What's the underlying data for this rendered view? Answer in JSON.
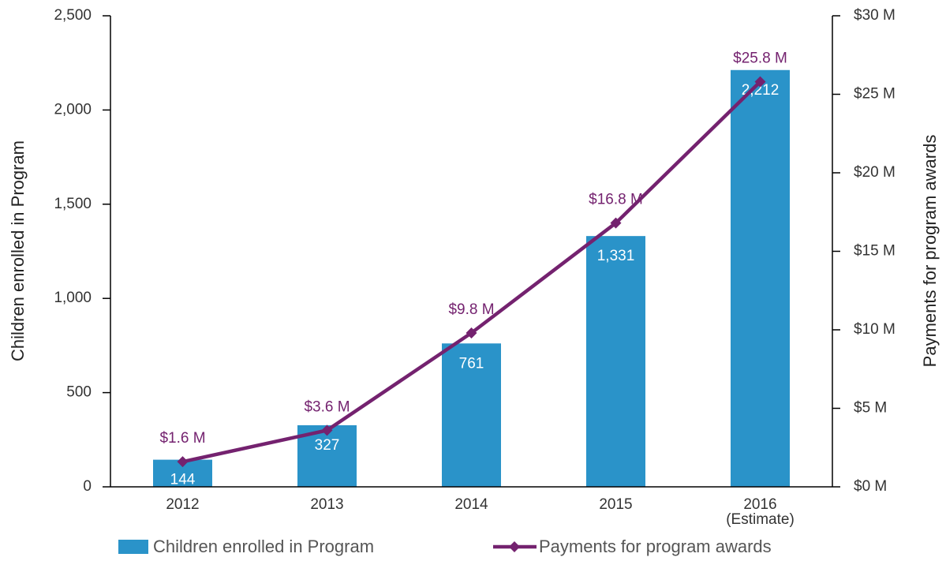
{
  "chart_data": {
    "type": "bar_line",
    "categories": [
      "2012",
      "2013",
      "2014",
      "2015",
      "2016\n(Estimate)"
    ],
    "y_label": "Children enrolled in Program",
    "y2_label": "Payments for program awards",
    "ylim": [
      0,
      2500
    ],
    "yticks": [
      0,
      500,
      {
        "value": 1000,
        "label": "1,000"
      },
      {
        "value": 1500,
        "label": "1,500"
      },
      {
        "value": 2000,
        "label": "2,000"
      },
      {
        "value": 2500,
        "label": "2,500"
      }
    ],
    "y2lim": [
      0,
      30
    ],
    "y2ticks": [
      {
        "value": 0,
        "label": "$0 M"
      },
      {
        "value": 5,
        "label": "$5 M"
      },
      {
        "value": 10,
        "label": "$10 M"
      },
      {
        "value": 15,
        "label": "$15 M"
      },
      {
        "value": 20,
        "label": "$20 M"
      },
      {
        "value": 25,
        "label": "$25 M"
      },
      {
        "value": 30,
        "label": "$30 M"
      }
    ],
    "series": [
      {
        "name": "Children enrolled in Program",
        "type": "bar",
        "color": "#2a93c9",
        "values": [
          144,
          327,
          761,
          1331,
          2212
        ],
        "value_labels": [
          "144",
          "327",
          "761",
          "1,331",
          "2,212"
        ]
      },
      {
        "name": "Payments for program awards",
        "type": "line",
        "axis": "y2",
        "color": "#74226f",
        "values": [
          1.6,
          3.6,
          9.8,
          16.8,
          25.8
        ],
        "value_labels": [
          "$1.6 M",
          "$3.6 M",
          "$9.8 M",
          "$16.8 M",
          "$25.8 M"
        ]
      }
    ]
  }
}
